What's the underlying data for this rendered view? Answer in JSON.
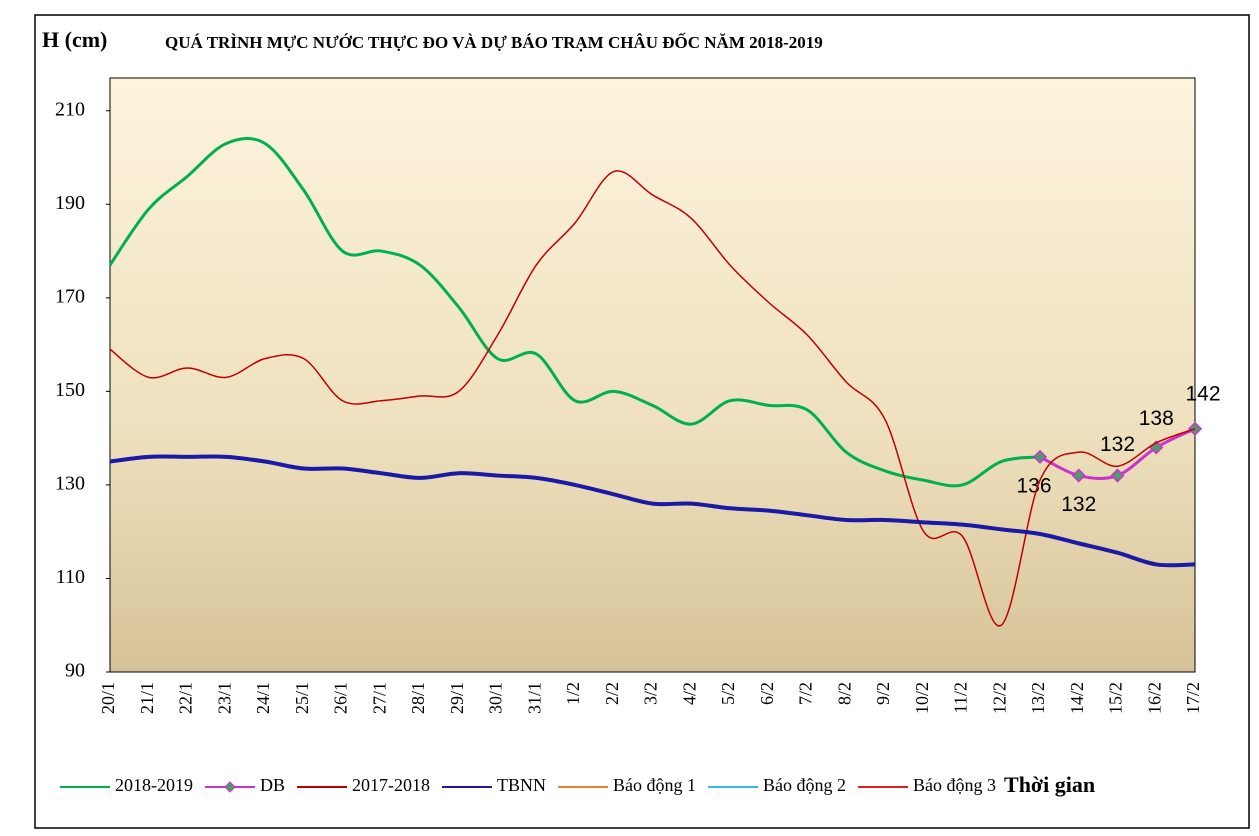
{
  "chart_data": {
    "type": "line",
    "title": "QUÁ TRÌNH MỰC NƯỚC THỰC ĐO VÀ DỰ BÁO TRẠM CHÂU ĐỐC NĂM  2018-2019",
    "y_label": "H (cm)",
    "x_label": "Thời gian",
    "categories": [
      "20/1",
      "21/1",
      "22/1",
      "23/1",
      "24/1",
      "25/1",
      "26/1",
      "27/1",
      "28/1",
      "29/1",
      "30/1",
      "31/1",
      "1/2",
      "2/2",
      "3/2",
      "4/2",
      "5/2",
      "6/2",
      "7/2",
      "8/2",
      "9/2",
      "10/2",
      "11/2",
      "12/2",
      "13/2",
      "14/2",
      "15/2",
      "16/2",
      "17/2"
    ],
    "series": [
      {
        "name": "2018-2019",
        "color": "#00b050",
        "values": [
          177,
          189,
          196,
          203,
          203,
          193,
          180,
          180,
          177,
          168,
          157,
          158,
          148,
          150,
          147,
          143,
          148,
          147,
          146,
          137,
          133,
          131,
          130,
          135,
          136,
          null,
          null,
          null,
          null
        ]
      },
      {
        "name": "DB",
        "color": "#cc33cc",
        "marker_color": "#4f9a6b",
        "values": [
          null,
          null,
          null,
          null,
          null,
          null,
          null,
          null,
          null,
          null,
          null,
          null,
          null,
          null,
          null,
          null,
          null,
          null,
          null,
          null,
          null,
          null,
          null,
          null,
          136,
          132,
          132,
          138,
          142
        ]
      },
      {
        "name": "2017-2018",
        "color": "#c00000",
        "values": [
          159,
          153,
          155,
          153,
          157,
          157,
          148,
          148,
          149,
          150,
          162,
          177,
          186,
          197,
          192,
          187,
          177,
          169,
          162,
          152,
          144,
          120,
          119,
          100,
          131,
          137,
          134,
          139,
          142
        ]
      },
      {
        "name": "TBNN",
        "color": "#1a1aa6",
        "values": [
          135,
          136,
          136,
          136,
          135,
          133.5,
          133.5,
          132.5,
          131.5,
          132.5,
          132,
          131.5,
          130,
          128,
          126,
          126,
          125,
          124.5,
          123.5,
          122.5,
          122.5,
          122,
          121.5,
          120.5,
          119.5,
          117.5,
          115.5,
          113,
          113
        ]
      },
      {
        "name": "Báo động 1",
        "color": "#f08030"
      },
      {
        "name": "Báo động 2",
        "color": "#33bbee"
      },
      {
        "name": "Báo động 3",
        "color": "#e02020"
      }
    ],
    "ylim": [
      90,
      217
    ],
    "yticks": [
      90,
      110,
      130,
      150,
      170,
      190,
      210
    ],
    "grid": false
  }
}
